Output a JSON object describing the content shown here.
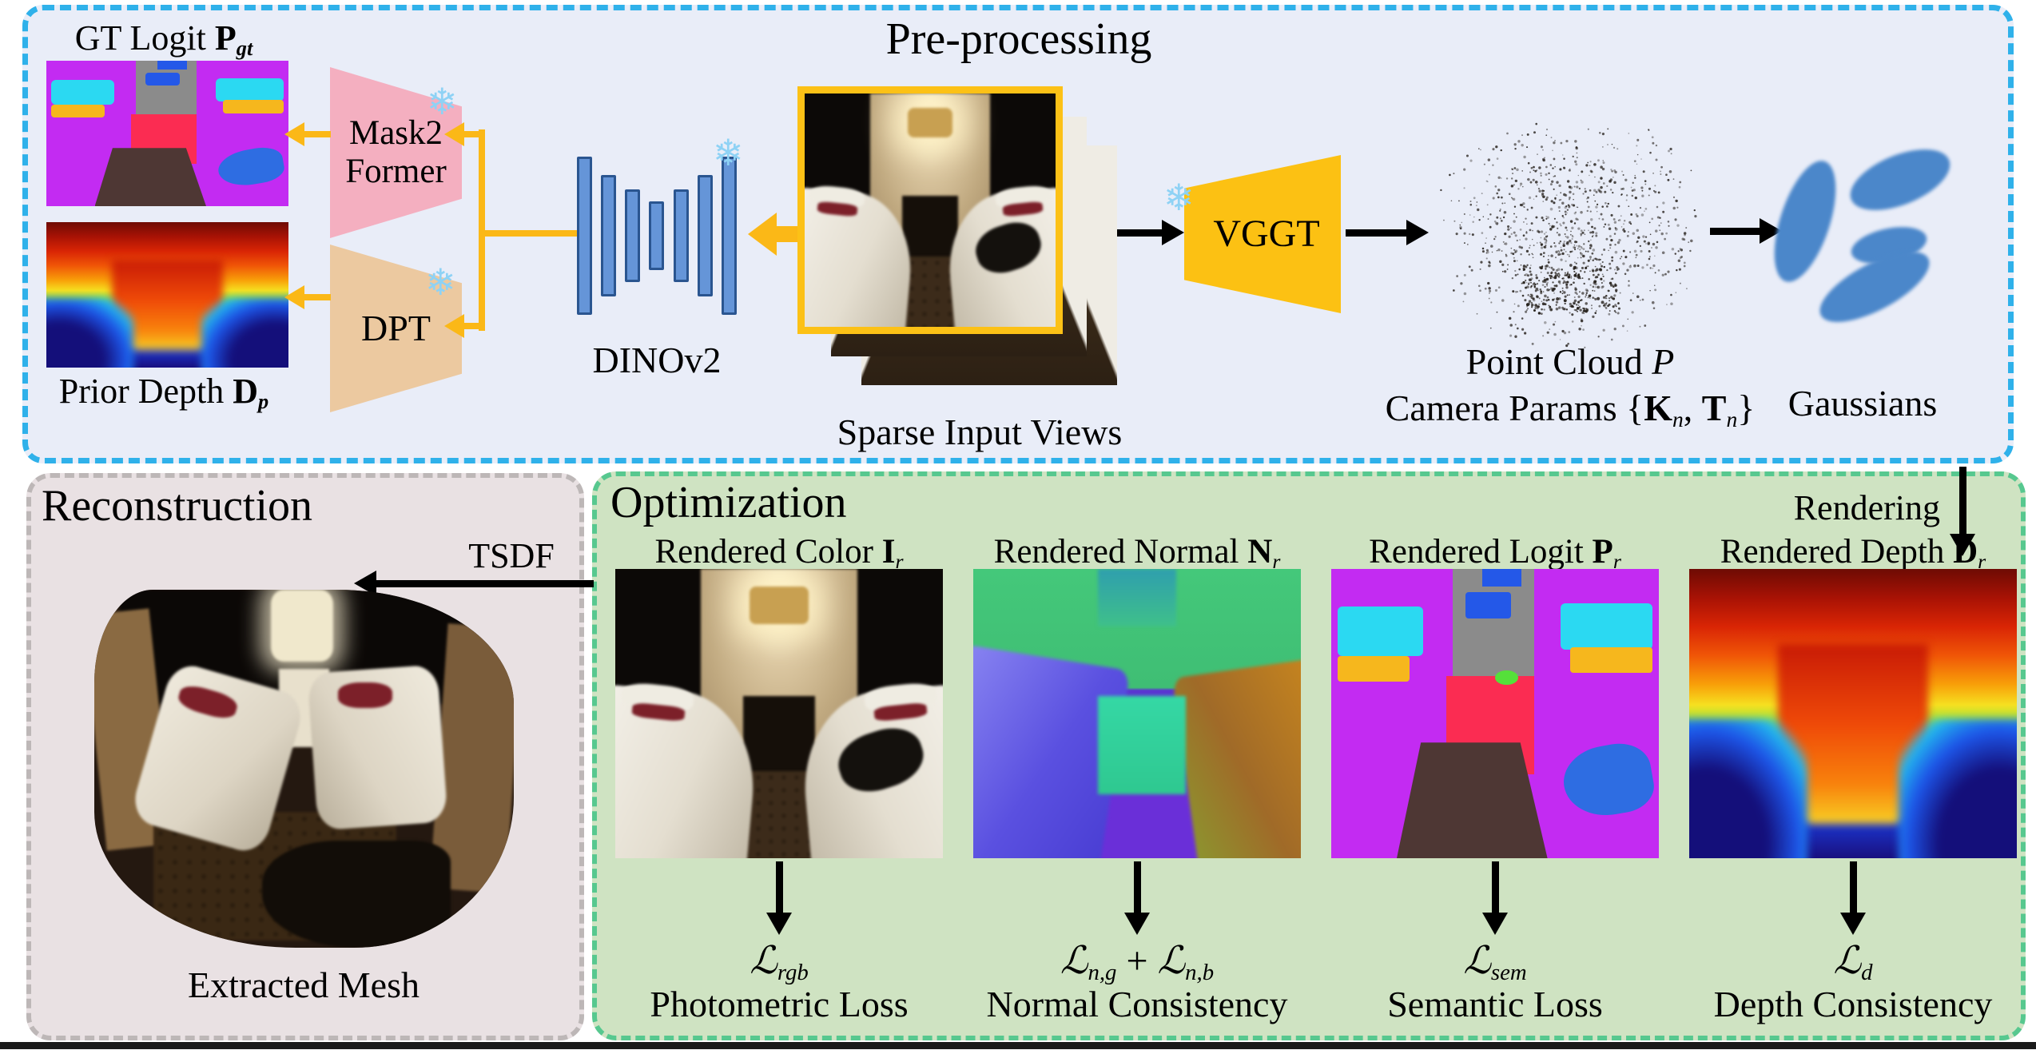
{
  "preprocessing": {
    "title": "Pre-processing",
    "gt_logit_label": {
      "prefix": "GT Logit ",
      "var": "P",
      "sub": "gt"
    },
    "prior_depth_label": {
      "prefix": "Prior Depth ",
      "var": "D",
      "sub": "p"
    },
    "mask2former": {
      "line1": "Mask2",
      "line2": "Former"
    },
    "dpt_label": "DPT",
    "dinov2_label": "DINOv2",
    "sparse_views_label": "Sparse Input Views",
    "vggt_label": "VGGT",
    "point_cloud_label": {
      "prefix": "Point Cloud ",
      "var": "P"
    },
    "camera_params_label": {
      "prefix": "Camera Params {",
      "k": "K",
      "k_sub": "n",
      "comma": ", ",
      "t": "T",
      "t_sub": "n",
      "close": "}"
    },
    "gaussians_label": "Gaussians",
    "snowflake_icon": "❄"
  },
  "reconstruction": {
    "title": "Reconstruction",
    "tsdf_label": "TSDF",
    "extracted_mesh_label": "Extracted Mesh"
  },
  "optimization": {
    "title": "Optimization",
    "rendering_label": "Rendering",
    "columns": [
      {
        "title_prefix": "Rendered Color ",
        "var": "I",
        "var_sub": "r",
        "loss_sym": "ℒ",
        "loss_sub": "rgb",
        "loss_name": "Photometric Loss"
      },
      {
        "title_prefix": "Rendered Normal ",
        "var": "N",
        "var_sub": "r",
        "loss_sym": "ℒ",
        "loss_sub": "n,g",
        "loss_mid": " + ",
        "loss_sym2": "ℒ",
        "loss_sub2": "n,b",
        "loss_name": "Normal Consistency"
      },
      {
        "title_prefix": "Rendered Logit ",
        "var": "P",
        "var_sub": "r",
        "loss_sym": "ℒ",
        "loss_sub": "sem",
        "loss_name": "Semantic Loss"
      },
      {
        "title_prefix": "Rendered Depth ",
        "var": "D",
        "var_sub": "r",
        "loss_sym": "ℒ",
        "loss_sub": "d",
        "loss_name": "Depth Consistency"
      }
    ]
  },
  "colors": {
    "preprocess_bg": "#e9edf8",
    "preprocess_border": "#2fb1ea",
    "reconstruction_bg": "#e9e1e3",
    "reconstruction_border": "#bdb7b7",
    "optimization_bg": "#cfe3c2",
    "optimization_border": "#57c88f",
    "mask2former_fill": "#f4afc0",
    "dpt_fill": "#ecc9a0",
    "vggt_fill": "#fcc113",
    "arrow_yellow": "#fbb817",
    "dino_bar": "#6595d8",
    "gaussian_blue": "#4b87ca",
    "snowflake_blue": "#8ed2f5"
  }
}
